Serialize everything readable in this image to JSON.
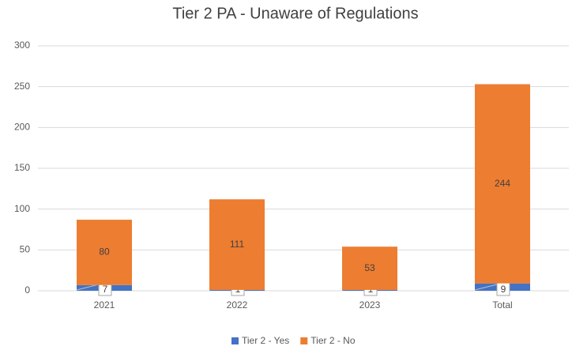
{
  "chart_data": {
    "type": "stacked_bar",
    "title": "Tier 2 PA - Unaware of Regulations",
    "categories": [
      "2021",
      "2022",
      "2023",
      "Total"
    ],
    "series": [
      {
        "name": "Tier 2 - Yes",
        "color": "#4472c4",
        "values": [
          7,
          1,
          1,
          9
        ]
      },
      {
        "name": "Tier 2 - No",
        "color": "#ed7d31",
        "values": [
          80,
          111,
          53,
          244
        ]
      }
    ],
    "ylim": [
      0,
      300
    ],
    "yticks": [
      0,
      50,
      100,
      150,
      200,
      250,
      300
    ],
    "grid": true,
    "legend": "bottom"
  }
}
